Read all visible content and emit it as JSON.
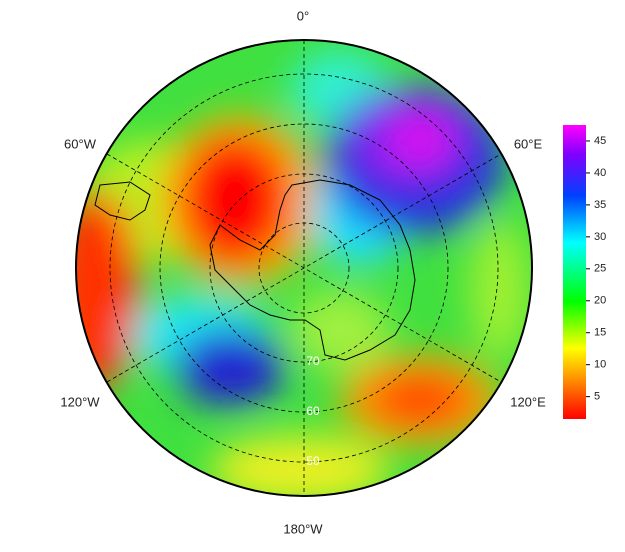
{
  "map": {
    "longitude_labels": [
      "0°",
      "60°W",
      "60°E",
      "120°W",
      "120°E",
      "180°W"
    ],
    "latitude_labels": [
      "70",
      "60",
      "50"
    ]
  },
  "colorbar": {
    "range": [
      1.5,
      47.5
    ],
    "ticks": [
      5,
      10,
      15,
      20,
      25,
      30,
      35,
      40,
      45
    ]
  }
}
